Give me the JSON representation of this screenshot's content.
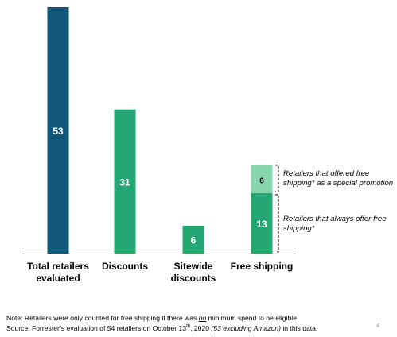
{
  "colors": {
    "dark_teal": "#115777",
    "green": "#25A774",
    "light_green": "#88D6AD",
    "axis": "#000000",
    "bracket": "#000000"
  },
  "chart_data": {
    "type": "bar",
    "stacked": true,
    "categories": [
      "Total retailers\nevaluated",
      "Discounts",
      "Sitewide\ndiscounts",
      "Free shipping"
    ],
    "series": [
      {
        "name": "",
        "values": [
          53,
          31,
          6,
          13
        ],
        "colors": [
          "#115777",
          "#25A774",
          "#25A774",
          "#25A774"
        ]
      },
      {
        "name": "",
        "values": [
          null,
          null,
          null,
          6
        ],
        "colors": [
          null,
          null,
          null,
          "#88D6AD"
        ]
      }
    ],
    "data_labels": [
      "53",
      "31",
      "6",
      "13",
      "6"
    ],
    "ylim": [
      0,
      55
    ],
    "grid": false,
    "legend": "none",
    "annotations": [
      "Retailers that offered free shipping* as a special promotion",
      "Retailers that always offer free shipping*"
    ]
  },
  "annotations": {
    "promo": "Retailers that offered free shipping* as a special promotion",
    "always": "Retailers that always offer free shipping*"
  },
  "footnotes": {
    "note": "Note: Retailers were only counted for free shipping if there was no minimum spend to be eligible.",
    "source_prefix": "Source: Forrester’s evaluation of 54 retailers on October 13",
    "source_sup": "th",
    "source_mid": ", 2020 ",
    "source_italic": "(53 excluding Amazon)",
    "source_suffix": " in this data."
  },
  "page_number": "4"
}
